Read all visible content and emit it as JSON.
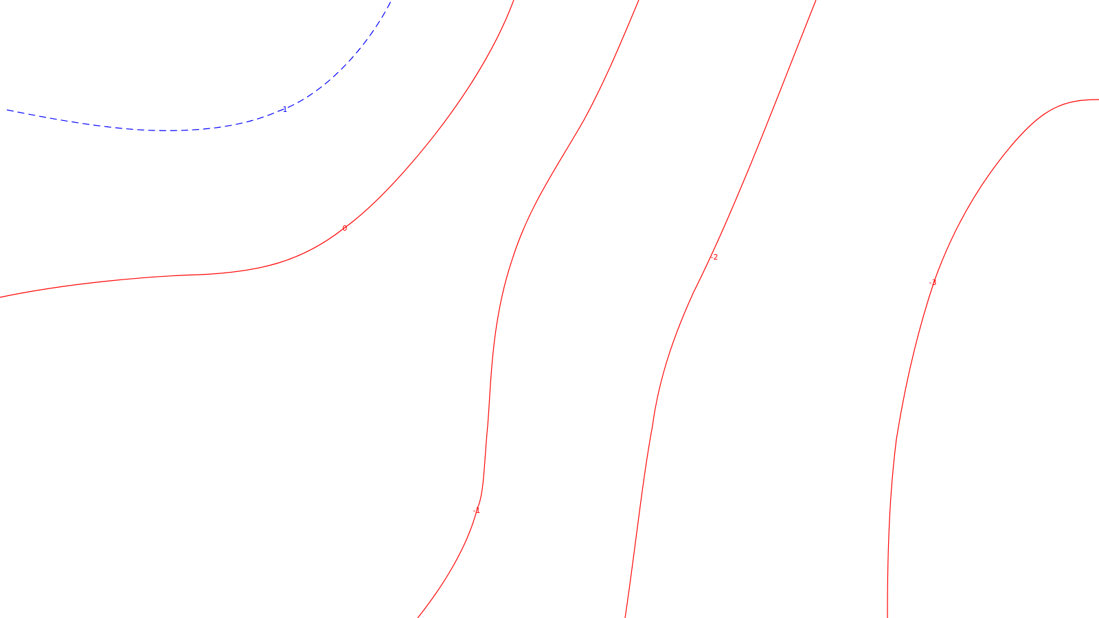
{
  "chart_data": {
    "type": "contour",
    "title": "",
    "xlabel": "",
    "ylabel": "",
    "grid": false,
    "legend": "none",
    "colors": {
      "positive": "#0000ff",
      "zero_and_negative": "#ff0000",
      "background": "#ffffff"
    },
    "levels": [
      {
        "value": 1,
        "label": "1",
        "style": "dashed",
        "color": "#0000ff"
      },
      {
        "value": 0,
        "label": "0",
        "style": "solid",
        "color": "#ff0000"
      },
      {
        "value": -1,
        "label": "-1",
        "style": "solid",
        "color": "#ff0000"
      },
      {
        "value": -2,
        "label": "-2",
        "style": "solid",
        "color": "#ff0000"
      },
      {
        "value": -3,
        "label": "-3",
        "style": "solid",
        "color": "#ff0000"
      }
    ]
  }
}
